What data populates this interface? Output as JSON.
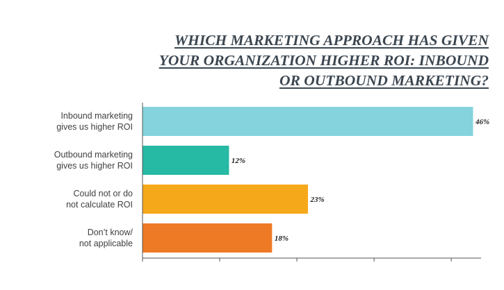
{
  "chart_data": {
    "type": "bar",
    "orientation": "horizontal",
    "title_lines": [
      "WHICH MARKETING APPROACH HAS GIVEN",
      "YOUR ORGANIZATION HIGHER ROI: INBOUND",
      "OR OUTBOUND MARKETING?"
    ],
    "categories": [
      [
        "Inbound marketing",
        "gives us higher ROI"
      ],
      [
        "Outbound marketing",
        "gives us higher ROI"
      ],
      [
        "Could not or do",
        "not calculate ROI"
      ],
      [
        "Don’t know/",
        "not applicable"
      ]
    ],
    "values": [
      46,
      12,
      23,
      18
    ],
    "value_labels": [
      "46%",
      "12%",
      "23%",
      "18%"
    ],
    "colors": [
      "#85d3dc",
      "#26b9a3",
      "#f6a81b",
      "#ef7a26"
    ],
    "xlim": [
      0,
      47
    ],
    "grid": false,
    "legend": "none"
  }
}
